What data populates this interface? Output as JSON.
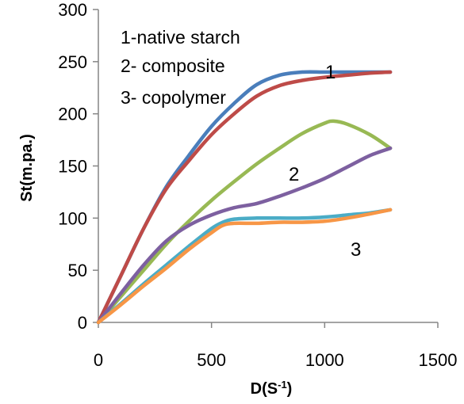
{
  "chart_data": {
    "type": "line",
    "xlabel": "D(S",
    "xlabel_sup": "-1",
    "xlabel_close": ")",
    "ylabel": "St(m.pa.)",
    "xlim": [
      0,
      1500
    ],
    "ylim": [
      0,
      300
    ],
    "x_ticks": [
      "0",
      "500",
      "1000",
      "1500"
    ],
    "y_ticks": [
      "0",
      "50",
      "100",
      "150",
      "200",
      "250",
      "300"
    ],
    "grid": false,
    "legend_lines": [
      "1-native starch",
      "2- composite",
      "3- copolymer"
    ],
    "curve_labels": [
      "1",
      "2",
      "3"
    ],
    "series": [
      {
        "color": "#4a7ebb",
        "x": [
          0,
          100,
          200,
          300,
          400,
          500,
          600,
          700,
          800,
          900,
          1000,
          1100,
          1200,
          1290
        ],
        "y": [
          0,
          45,
          90,
          130,
          160,
          188,
          210,
          228,
          237,
          240,
          240,
          240,
          240,
          240
        ]
      },
      {
        "color": "#be4b48",
        "x": [
          0,
          100,
          200,
          300,
          400,
          500,
          600,
          700,
          800,
          900,
          1000,
          1100,
          1200,
          1290
        ],
        "y": [
          0,
          45,
          90,
          128,
          155,
          180,
          200,
          217,
          227,
          232,
          235,
          237,
          239,
          240
        ]
      },
      {
        "color": "#98b954",
        "x": [
          0,
          100,
          200,
          300,
          400,
          500,
          600,
          700,
          800,
          900,
          1000,
          1040,
          1100,
          1200,
          1290
        ],
        "y": [
          0,
          25,
          50,
          75,
          97,
          117,
          135,
          152,
          167,
          181,
          191,
          193,
          190,
          180,
          167
        ]
      },
      {
        "color": "#7d60a0",
        "x": [
          0,
          100,
          200,
          300,
          400,
          500,
          600,
          700,
          800,
          900,
          1000,
          1100,
          1200,
          1290
        ],
        "y": [
          0,
          28,
          55,
          78,
          93,
          103,
          110,
          114,
          121,
          129,
          138,
          149,
          160,
          167
        ]
      },
      {
        "color": "#4bacc6",
        "x": [
          0,
          100,
          200,
          300,
          400,
          500,
          550,
          600,
          700,
          800,
          900,
          1000,
          1100,
          1200,
          1290
        ],
        "y": [
          0,
          18,
          37,
          55,
          73,
          90,
          96,
          99,
          100,
          100,
          100,
          101,
          103,
          105,
          108
        ]
      },
      {
        "color": "#f79646",
        "x": [
          0,
          100,
          200,
          300,
          400,
          500,
          550,
          600,
          700,
          800,
          900,
          1000,
          1100,
          1200,
          1290
        ],
        "y": [
          0,
          17,
          35,
          52,
          70,
          86,
          93,
          95,
          95,
          96,
          96,
          97,
          100,
          104,
          108
        ]
      }
    ]
  }
}
